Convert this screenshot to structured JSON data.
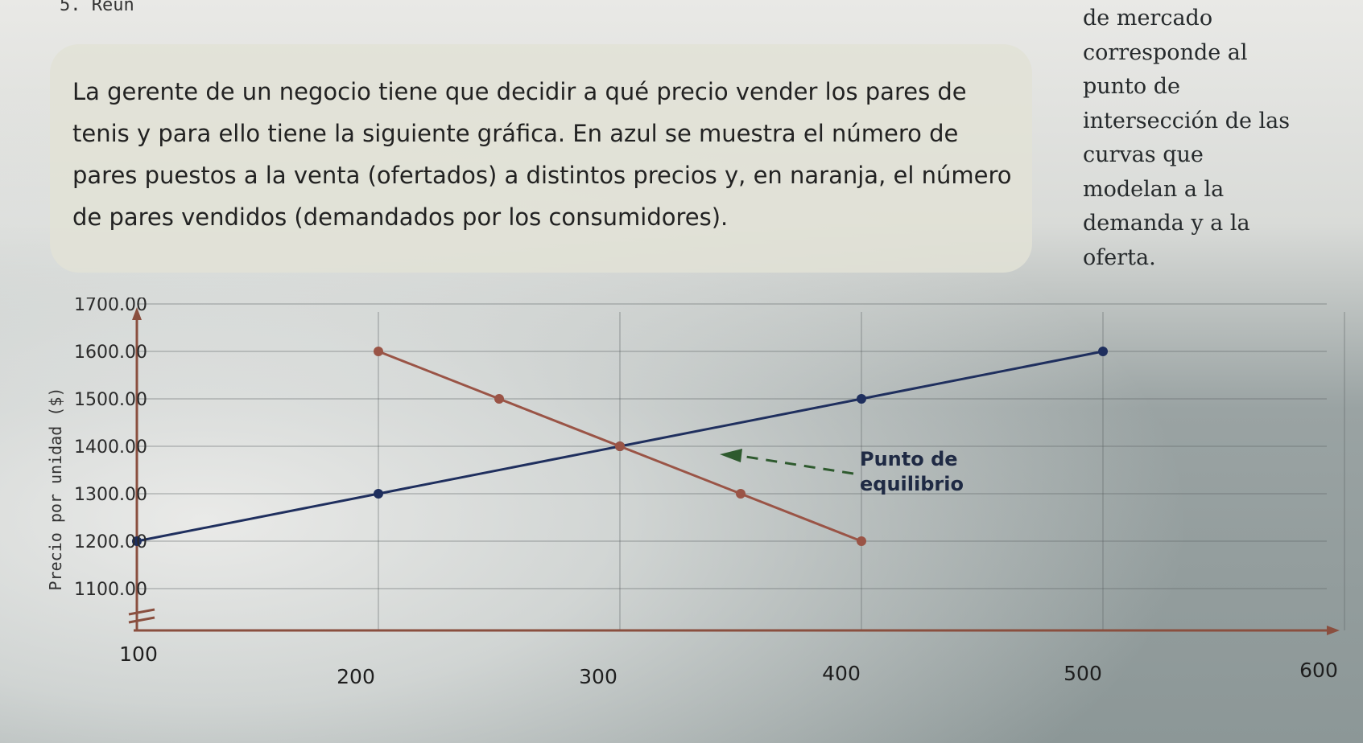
{
  "problem_number": "5. Reún",
  "prompt_text": "La gerente de un negocio tiene que decidir a qué precio vender los pares de tenis y para ello tiene la siguiente gráfica. En azul se muestra el número de pares puestos a la venta (ofertados) a distintos precios y, en naranja, el número de pares vendidos (demandados por los consumidores).",
  "side_note": "de mercado corresponde al punto de intersección de las curvas que modelan a la demanda y a la oferta.",
  "chart_data": {
    "type": "line",
    "title": "",
    "xlabel": "",
    "ylabel": "Precio por unidad ($)",
    "x_ticks": [
      "100",
      "200",
      "300",
      "400",
      "500",
      "600"
    ],
    "y_ticks": [
      "1100.00",
      "1200.00",
      "1300.00",
      "1400.00",
      "1500.00",
      "1600.00",
      "1700.00"
    ],
    "xlim": [
      100,
      600
    ],
    "ylim": [
      1050,
      1700
    ],
    "grid": true,
    "series": [
      {
        "name": "",
        "role": "oferta",
        "color": "#1f2f5e",
        "x": [
          100,
          200,
          300,
          400,
          500
        ],
        "y": [
          1200,
          1300,
          1400,
          1500,
          1600
        ]
      },
      {
        "name": "",
        "role": "demanda",
        "color": "#9a5446",
        "x": [
          200,
          250,
          300,
          350,
          400
        ],
        "y": [
          1600,
          1500,
          1400,
          1300,
          1200
        ]
      }
    ],
    "annotation": {
      "text_line1": "Punto de",
      "text_line2": "equilibrio",
      "arrow_color": "#2e5a2e",
      "target": [
        300,
        1400
      ]
    }
  }
}
